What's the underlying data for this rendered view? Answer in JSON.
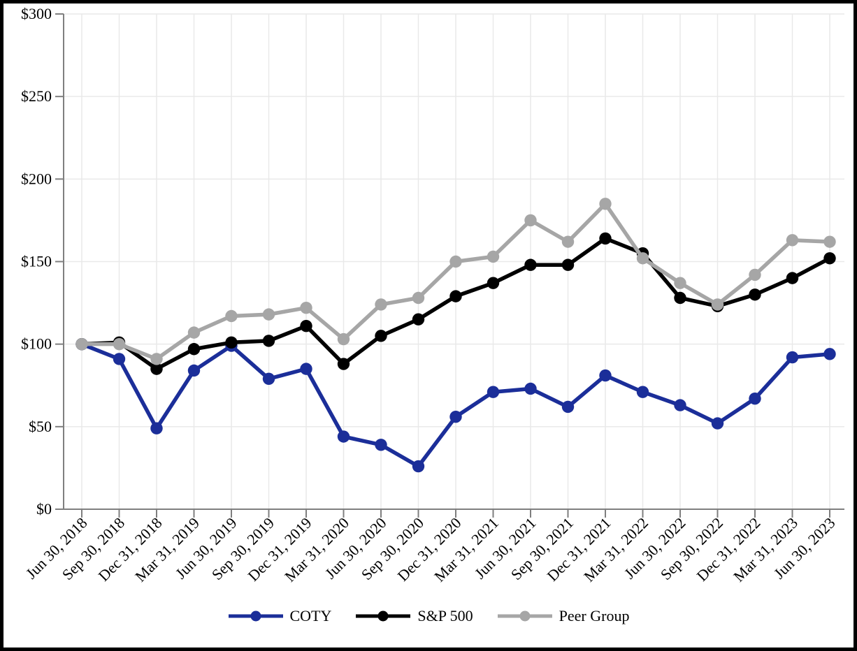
{
  "chart_data": {
    "type": "line",
    "x": [
      "Jun 30, 2018",
      "Sep 30, 2018",
      "Dec 31, 2018",
      "Mar 31, 2019",
      "Jun 30, 2019",
      "Sep 30, 2019",
      "Dec 31, 2019",
      "Mar 31, 2020",
      "Jun 30, 2020",
      "Sep 30, 2020",
      "Dec 31, 2020",
      "Mar 31, 2021",
      "Jun 30, 2021",
      "Sep 30, 2021",
      "Dec 31, 2021",
      "Mar 31, 2022",
      "Jun 30, 2022",
      "Sep 30, 2022",
      "Dec 31, 2022",
      "Mar 31, 2023",
      "Jun 30, 2023"
    ],
    "ylim": [
      0,
      300
    ],
    "y_ticks": {
      "values": [
        0,
        50,
        100,
        150,
        200,
        250,
        300
      ],
      "labels": [
        "$0",
        "$50",
        "$100",
        "$150",
        "$200",
        "$250",
        "$300"
      ]
    },
    "grid": true,
    "legend_position": "bottom",
    "axis_color": "#7f7f7f",
    "gridline_color": "#e9e9e9",
    "series": [
      {
        "name": "COTY",
        "color": "#1b2e99",
        "values": [
          100,
          91,
          49,
          84,
          99,
          79,
          85,
          44,
          39,
          26,
          56,
          71,
          73,
          62,
          81,
          71,
          63,
          52,
          67,
          92,
          94
        ]
      },
      {
        "name": "S&P 500",
        "color": "#000000",
        "values": [
          100,
          101,
          85,
          97,
          101,
          102,
          111,
          88,
          105,
          115,
          129,
          137,
          148,
          148,
          164,
          155,
          128,
          123,
          130,
          140,
          152
        ]
      },
      {
        "name": "Peer Group",
        "color": "#a6a6a6",
        "values": [
          100,
          100,
          91,
          107,
          117,
          118,
          122,
          103,
          124,
          128,
          150,
          153,
          175,
          162,
          185,
          152,
          137,
          124,
          142,
          163,
          162
        ]
      }
    ]
  }
}
